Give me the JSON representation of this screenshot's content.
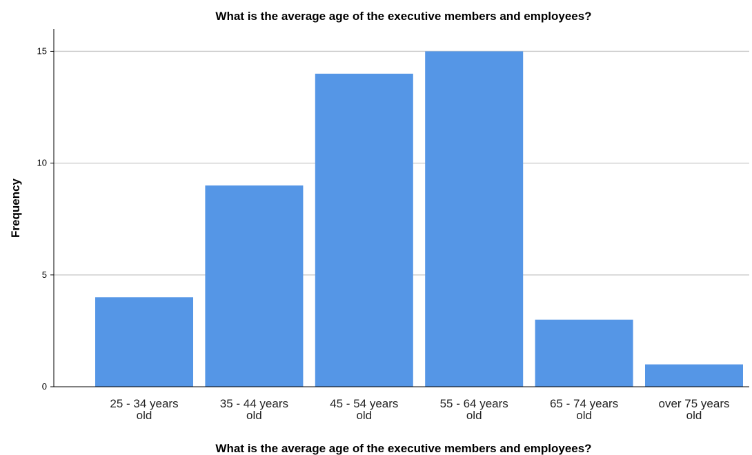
{
  "chart_data": {
    "type": "bar",
    "title": "What is the average age of the executive members and employees?",
    "xlabel": "What is the average age of the executive members and employees?",
    "ylabel": "Frequency",
    "categories": [
      "25 - 34 years old",
      "35 - 44 years old",
      "45 - 54 years old",
      "55 - 64 years old",
      "65 - 74 years old",
      "over 75 years old"
    ],
    "category_lines": [
      [
        "25 - 34 years",
        "old"
      ],
      [
        "35 - 44 years",
        "old"
      ],
      [
        "45 - 54 years",
        "old"
      ],
      [
        "55 - 64 years",
        "old"
      ],
      [
        "65 - 74 years",
        "old"
      ],
      [
        "over 75 years",
        "old"
      ]
    ],
    "values": [
      4,
      9,
      14,
      15,
      3,
      1
    ],
    "ylim": [
      0,
      16
    ],
    "yticks": [
      0,
      5,
      10,
      15
    ],
    "grid": true,
    "legend": "none",
    "bar_color": "#5596e6"
  }
}
